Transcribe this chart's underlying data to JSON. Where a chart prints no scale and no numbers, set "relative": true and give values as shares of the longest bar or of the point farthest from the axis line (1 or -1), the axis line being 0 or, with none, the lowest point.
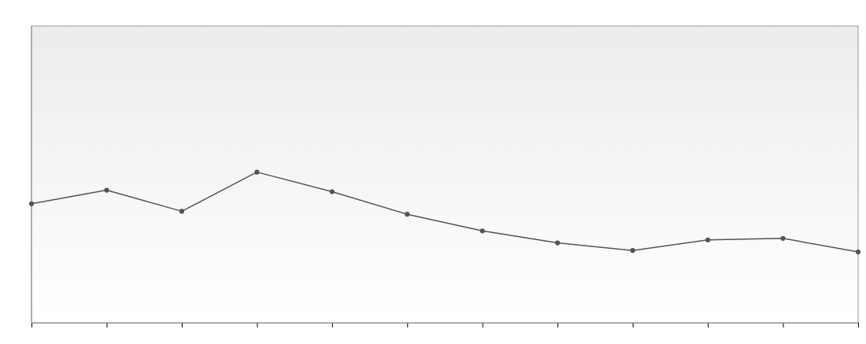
{
  "chart_data": {
    "type": "line",
    "relative": true,
    "categories": [
      null,
      null,
      null,
      null,
      null,
      null,
      null,
      null,
      null,
      null,
      null,
      null
    ],
    "series": [
      {
        "color": "#555555",
        "values": [
          0.79,
          0.88,
          0.74,
          1,
          0.87,
          0.72,
          0.61,
          0.53,
          0.48,
          0.55,
          0.56,
          0.47
        ]
      }
    ],
    "marker": "circle",
    "line_style": "solid"
  }
}
